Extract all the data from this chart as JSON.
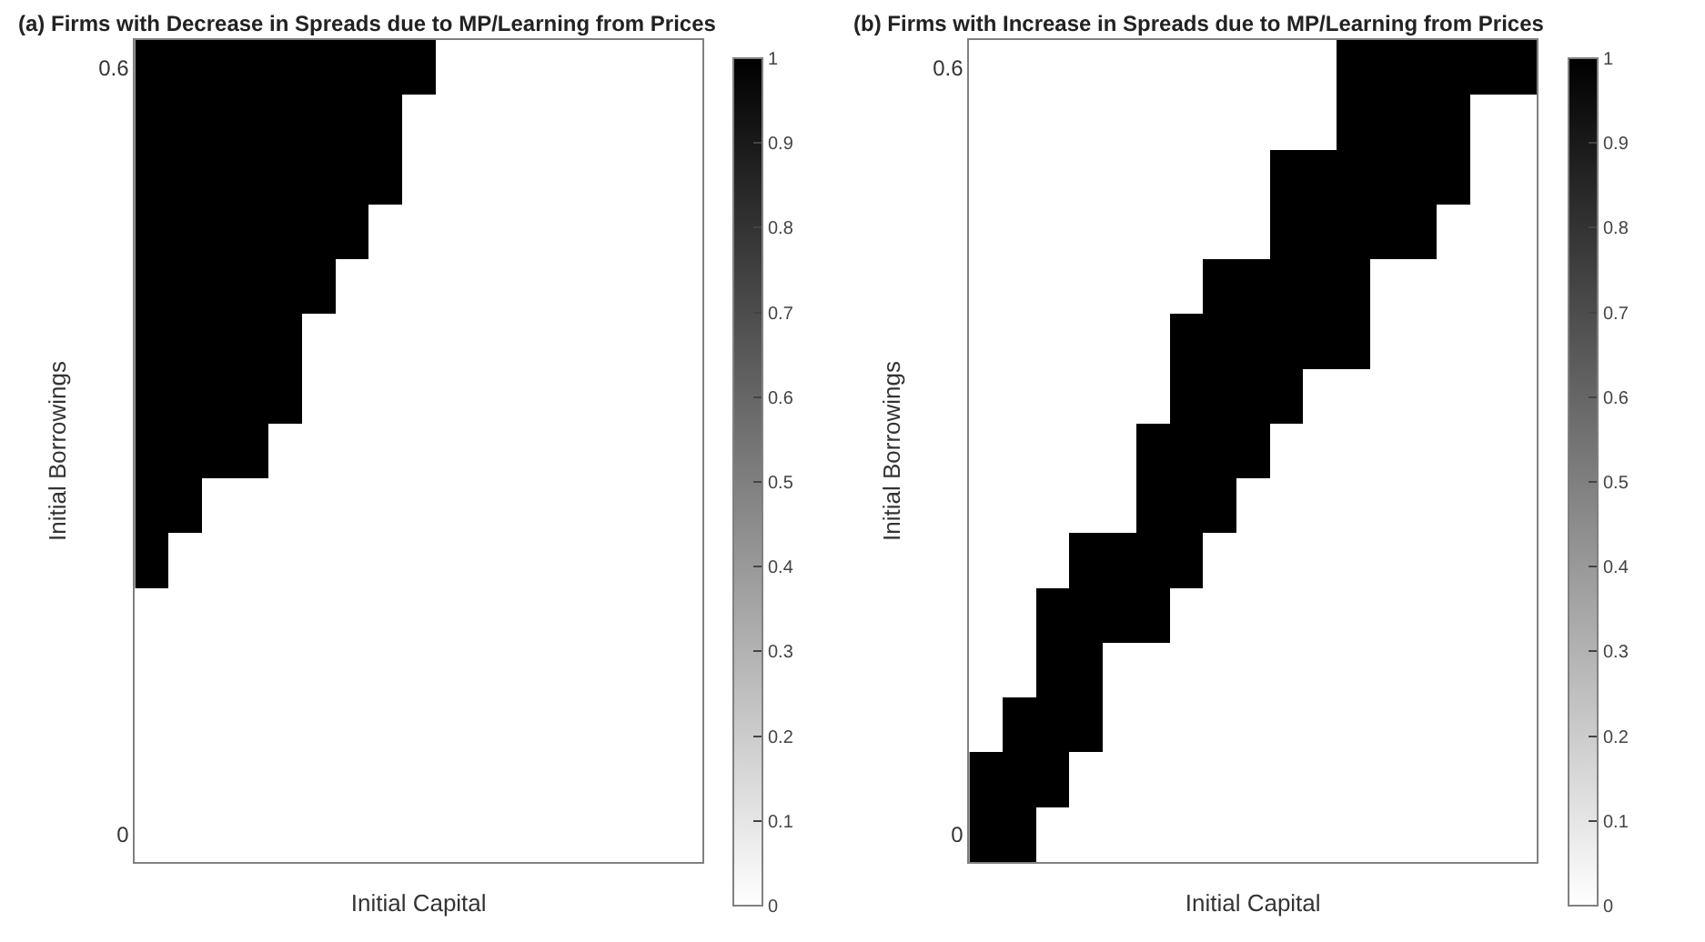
{
  "chart_data": [
    {
      "type": "heatmap",
      "title": "(a) Firms with Decrease in Spreads due to MP/Learning from Prices",
      "xlabel": "Initial Capital",
      "ylabel": "Initial Borrowings",
      "categories": [
        null,
        null,
        null,
        null,
        null,
        null,
        null,
        null,
        null,
        null,
        null,
        null,
        null,
        null,
        null,
        null,
        null
      ],
      "y_categories": [
        "0.6",
        null,
        null,
        null,
        null,
        null,
        null,
        null,
        null,
        null,
        null,
        null,
        null,
        null,
        "0"
      ],
      "cells": [
        [
          1,
          1,
          1,
          1,
          1,
          1,
          1,
          1,
          1,
          0,
          0,
          0,
          0,
          0,
          0,
          0,
          0
        ],
        [
          1,
          1,
          1,
          1,
          1,
          1,
          1,
          1,
          0,
          0,
          0,
          0,
          0,
          0,
          0,
          0,
          0
        ],
        [
          1,
          1,
          1,
          1,
          1,
          1,
          1,
          1,
          0,
          0,
          0,
          0,
          0,
          0,
          0,
          0,
          0
        ],
        [
          1,
          1,
          1,
          1,
          1,
          1,
          1,
          0,
          0,
          0,
          0,
          0,
          0,
          0,
          0,
          0,
          0
        ],
        [
          1,
          1,
          1,
          1,
          1,
          1,
          0,
          0,
          0,
          0,
          0,
          0,
          0,
          0,
          0,
          0,
          0
        ],
        [
          1,
          1,
          1,
          1,
          1,
          0,
          0,
          0,
          0,
          0,
          0,
          0,
          0,
          0,
          0,
          0,
          0
        ],
        [
          1,
          1,
          1,
          1,
          1,
          0,
          0,
          0,
          0,
          0,
          0,
          0,
          0,
          0,
          0,
          0,
          0
        ],
        [
          1,
          1,
          1,
          1,
          0,
          0,
          0,
          0,
          0,
          0,
          0,
          0,
          0,
          0,
          0,
          0,
          0
        ],
        [
          1,
          1,
          0,
          0,
          0,
          0,
          0,
          0,
          0,
          0,
          0,
          0,
          0,
          0,
          0,
          0,
          0
        ],
        [
          1,
          0,
          0,
          0,
          0,
          0,
          0,
          0,
          0,
          0,
          0,
          0,
          0,
          0,
          0,
          0,
          0
        ],
        [
          0,
          0,
          0,
          0,
          0,
          0,
          0,
          0,
          0,
          0,
          0,
          0,
          0,
          0,
          0,
          0,
          0
        ],
        [
          0,
          0,
          0,
          0,
          0,
          0,
          0,
          0,
          0,
          0,
          0,
          0,
          0,
          0,
          0,
          0,
          0
        ],
        [
          0,
          0,
          0,
          0,
          0,
          0,
          0,
          0,
          0,
          0,
          0,
          0,
          0,
          0,
          0,
          0,
          0
        ],
        [
          0,
          0,
          0,
          0,
          0,
          0,
          0,
          0,
          0,
          0,
          0,
          0,
          0,
          0,
          0,
          0,
          0
        ],
        [
          0,
          0,
          0,
          0,
          0,
          0,
          0,
          0,
          0,
          0,
          0,
          0,
          0,
          0,
          0,
          0,
          0
        ]
      ],
      "clim": [
        0,
        1
      ],
      "cticks": [
        0,
        0.1,
        0.2,
        0.3,
        0.4,
        0.5,
        0.6,
        0.7,
        0.8,
        0.9,
        1
      ]
    },
    {
      "type": "heatmap",
      "title": "(b) Firms with Increase in Spreads due to MP/Learning from Prices",
      "xlabel": "Initial Capital",
      "ylabel": "Initial Borrowings",
      "categories": [
        null,
        null,
        null,
        null,
        null,
        null,
        null,
        null,
        null,
        null,
        null,
        null,
        null,
        null,
        null,
        null,
        null
      ],
      "y_categories": [
        "0.6",
        null,
        null,
        null,
        null,
        null,
        null,
        null,
        null,
        null,
        null,
        null,
        null,
        null,
        "0"
      ],
      "cells": [
        [
          0,
          0,
          0,
          0,
          0,
          0,
          0,
          0,
          0,
          0,
          0,
          1,
          1,
          1,
          1,
          1,
          1
        ],
        [
          0,
          0,
          0,
          0,
          0,
          0,
          0,
          0,
          0,
          0,
          0,
          1,
          1,
          1,
          1,
          0,
          0
        ],
        [
          0,
          0,
          0,
          0,
          0,
          0,
          0,
          0,
          0,
          1,
          1,
          1,
          1,
          1,
          1,
          0,
          0
        ],
        [
          0,
          0,
          0,
          0,
          0,
          0,
          0,
          0,
          0,
          1,
          1,
          1,
          1,
          1,
          0,
          0,
          0
        ],
        [
          0,
          0,
          0,
          0,
          0,
          0,
          0,
          1,
          1,
          1,
          1,
          1,
          0,
          0,
          0,
          0,
          0
        ],
        [
          0,
          0,
          0,
          0,
          0,
          0,
          1,
          1,
          1,
          1,
          1,
          1,
          0,
          0,
          0,
          0,
          0
        ],
        [
          0,
          0,
          0,
          0,
          0,
          0,
          1,
          1,
          1,
          1,
          0,
          0,
          0,
          0,
          0,
          0,
          0
        ],
        [
          0,
          0,
          0,
          0,
          0,
          1,
          1,
          1,
          1,
          0,
          0,
          0,
          0,
          0,
          0,
          0,
          0
        ],
        [
          0,
          0,
          0,
          0,
          0,
          1,
          1,
          1,
          0,
          0,
          0,
          0,
          0,
          0,
          0,
          0,
          0
        ],
        [
          0,
          0,
          0,
          1,
          1,
          1,
          1,
          0,
          0,
          0,
          0,
          0,
          0,
          0,
          0,
          0,
          0
        ],
        [
          0,
          0,
          1,
          1,
          1,
          1,
          0,
          0,
          0,
          0,
          0,
          0,
          0,
          0,
          0,
          0,
          0
        ],
        [
          0,
          0,
          1,
          1,
          0,
          0,
          0,
          0,
          0,
          0,
          0,
          0,
          0,
          0,
          0,
          0,
          0
        ],
        [
          0,
          1,
          1,
          1,
          0,
          0,
          0,
          0,
          0,
          0,
          0,
          0,
          0,
          0,
          0,
          0,
          0
        ],
        [
          1,
          1,
          1,
          0,
          0,
          0,
          0,
          0,
          0,
          0,
          0,
          0,
          0,
          0,
          0,
          0,
          0
        ],
        [
          1,
          1,
          0,
          0,
          0,
          0,
          0,
          0,
          0,
          0,
          0,
          0,
          0,
          0,
          0,
          0,
          0
        ]
      ],
      "clim": [
        0,
        1
      ],
      "cticks": [
        0,
        0.1,
        0.2,
        0.3,
        0.4,
        0.5,
        0.6,
        0.7,
        0.8,
        0.9,
        1
      ]
    }
  ]
}
